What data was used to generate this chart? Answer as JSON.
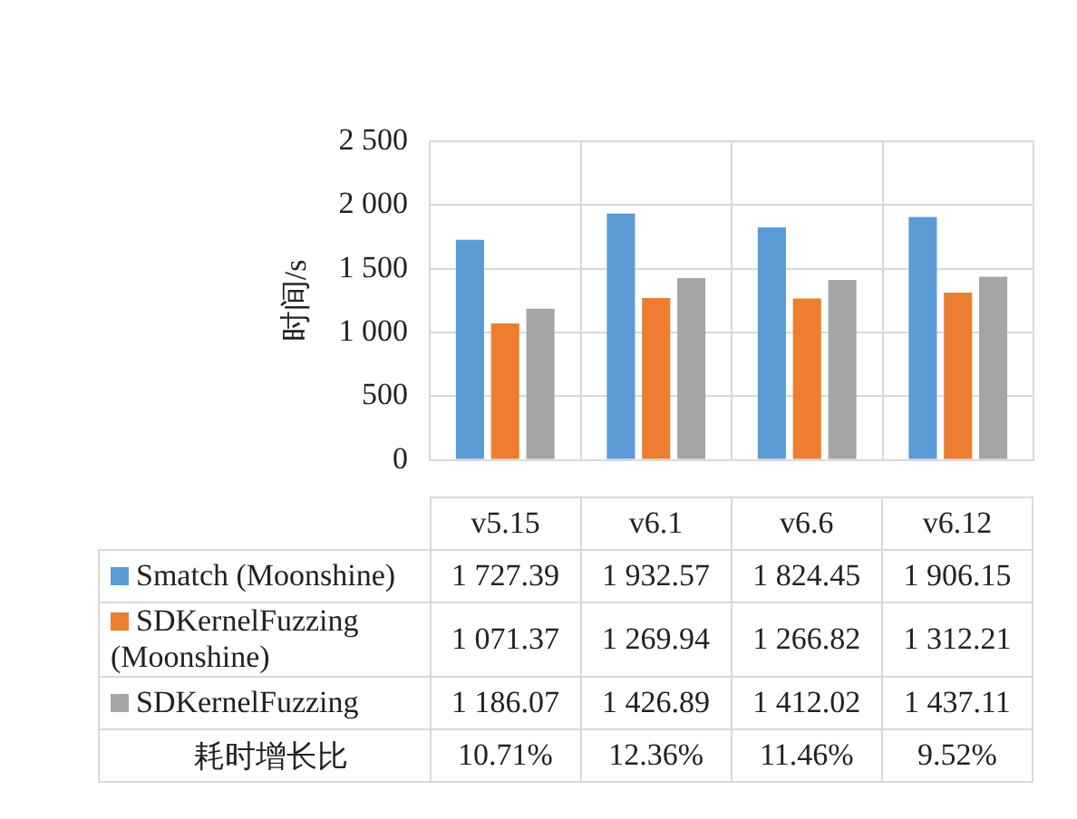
{
  "chart_data": {
    "type": "bar",
    "ylabel": "时间/s",
    "categories": [
      "v5.15",
      "v6.1",
      "v6.6",
      "v6.12"
    ],
    "series": [
      {
        "name": "Smatch (Moonshine)",
        "color": "#5b9bd5",
        "values": [
          1727.39,
          1932.57,
          1824.45,
          1906.15
        ],
        "value_labels": [
          "1 727.39",
          "1 932.57",
          "1 824.45",
          "1 906.15"
        ]
      },
      {
        "name": "SDKernelFuzzing (Moonshine)",
        "color": "#ed7d31",
        "values": [
          1071.37,
          1269.94,
          1266.82,
          1312.21
        ],
        "value_labels": [
          "1 071.37",
          "1 269.94",
          "1 266.82",
          "1 312.21"
        ]
      },
      {
        "name": "SDKernelFuzzing",
        "color": "#a5a5a5",
        "values": [
          1186.07,
          1426.89,
          1412.02,
          1437.11
        ],
        "value_labels": [
          "1 186.07",
          "1 426.89",
          "1 412.02",
          "1 437.11"
        ]
      }
    ],
    "ylim": [
      0,
      2500
    ],
    "yticks": [
      0,
      {
        "value": 500,
        "label": "500"
      },
      {
        "value": 1000,
        "label": "1 000"
      },
      {
        "value": 1500,
        "label": "1 500"
      },
      {
        "value": 2000,
        "label": "2 000"
      },
      {
        "value": 2500,
        "label": "2 500"
      }
    ],
    "grid": true,
    "legend": "bottom",
    "annotations": [
      "耗时增长比",
      "10.71%",
      "12.36%",
      "11.46%",
      "9.52%"
    ]
  }
}
